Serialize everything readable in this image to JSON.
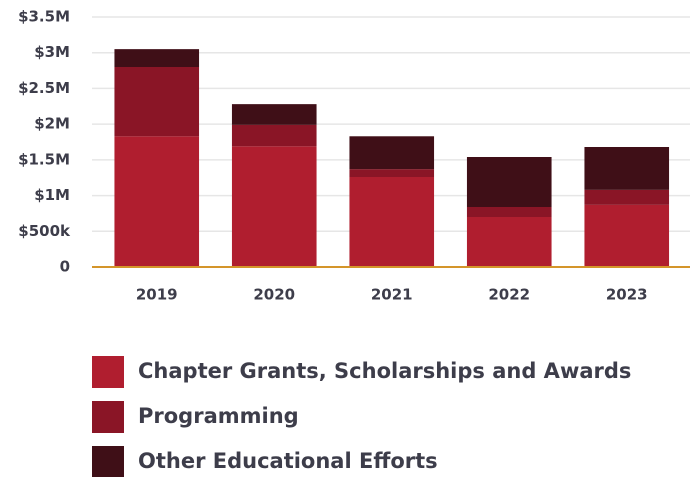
{
  "chart_data": {
    "type": "bar",
    "stacked": true,
    "categories": [
      "2019",
      "2020",
      "2021",
      "2022",
      "2023"
    ],
    "series": [
      {
        "name": "Chapter Grants, Scholarships and Awards",
        "color": "#b01e2f",
        "values": [
          1830000,
          1690000,
          1260000,
          700000,
          870000
        ]
      },
      {
        "name": "Programming",
        "color": "#8a1526",
        "values": [
          970000,
          300000,
          110000,
          140000,
          210000
        ]
      },
      {
        "name": "Other Educational Efforts",
        "color": "#3f0f17",
        "values": [
          250000,
          290000,
          460000,
          700000,
          600000
        ]
      }
    ],
    "ylim": [
      0,
      3500000
    ],
    "yticks": [
      0,
      {
        "value": 500000,
        "label": "$500k"
      },
      {
        "value": 1000000,
        "label": "$1M"
      },
      {
        "value": 1500000,
        "label": "$1.5M"
      },
      {
        "value": 2000000,
        "label": "$2M"
      },
      {
        "value": 2500000,
        "label": "$2.5M"
      },
      {
        "value": 3000000,
        "label": "$3M"
      },
      {
        "value": 3500000,
        "label": "$3.5M"
      }
    ],
    "grid": true
  }
}
